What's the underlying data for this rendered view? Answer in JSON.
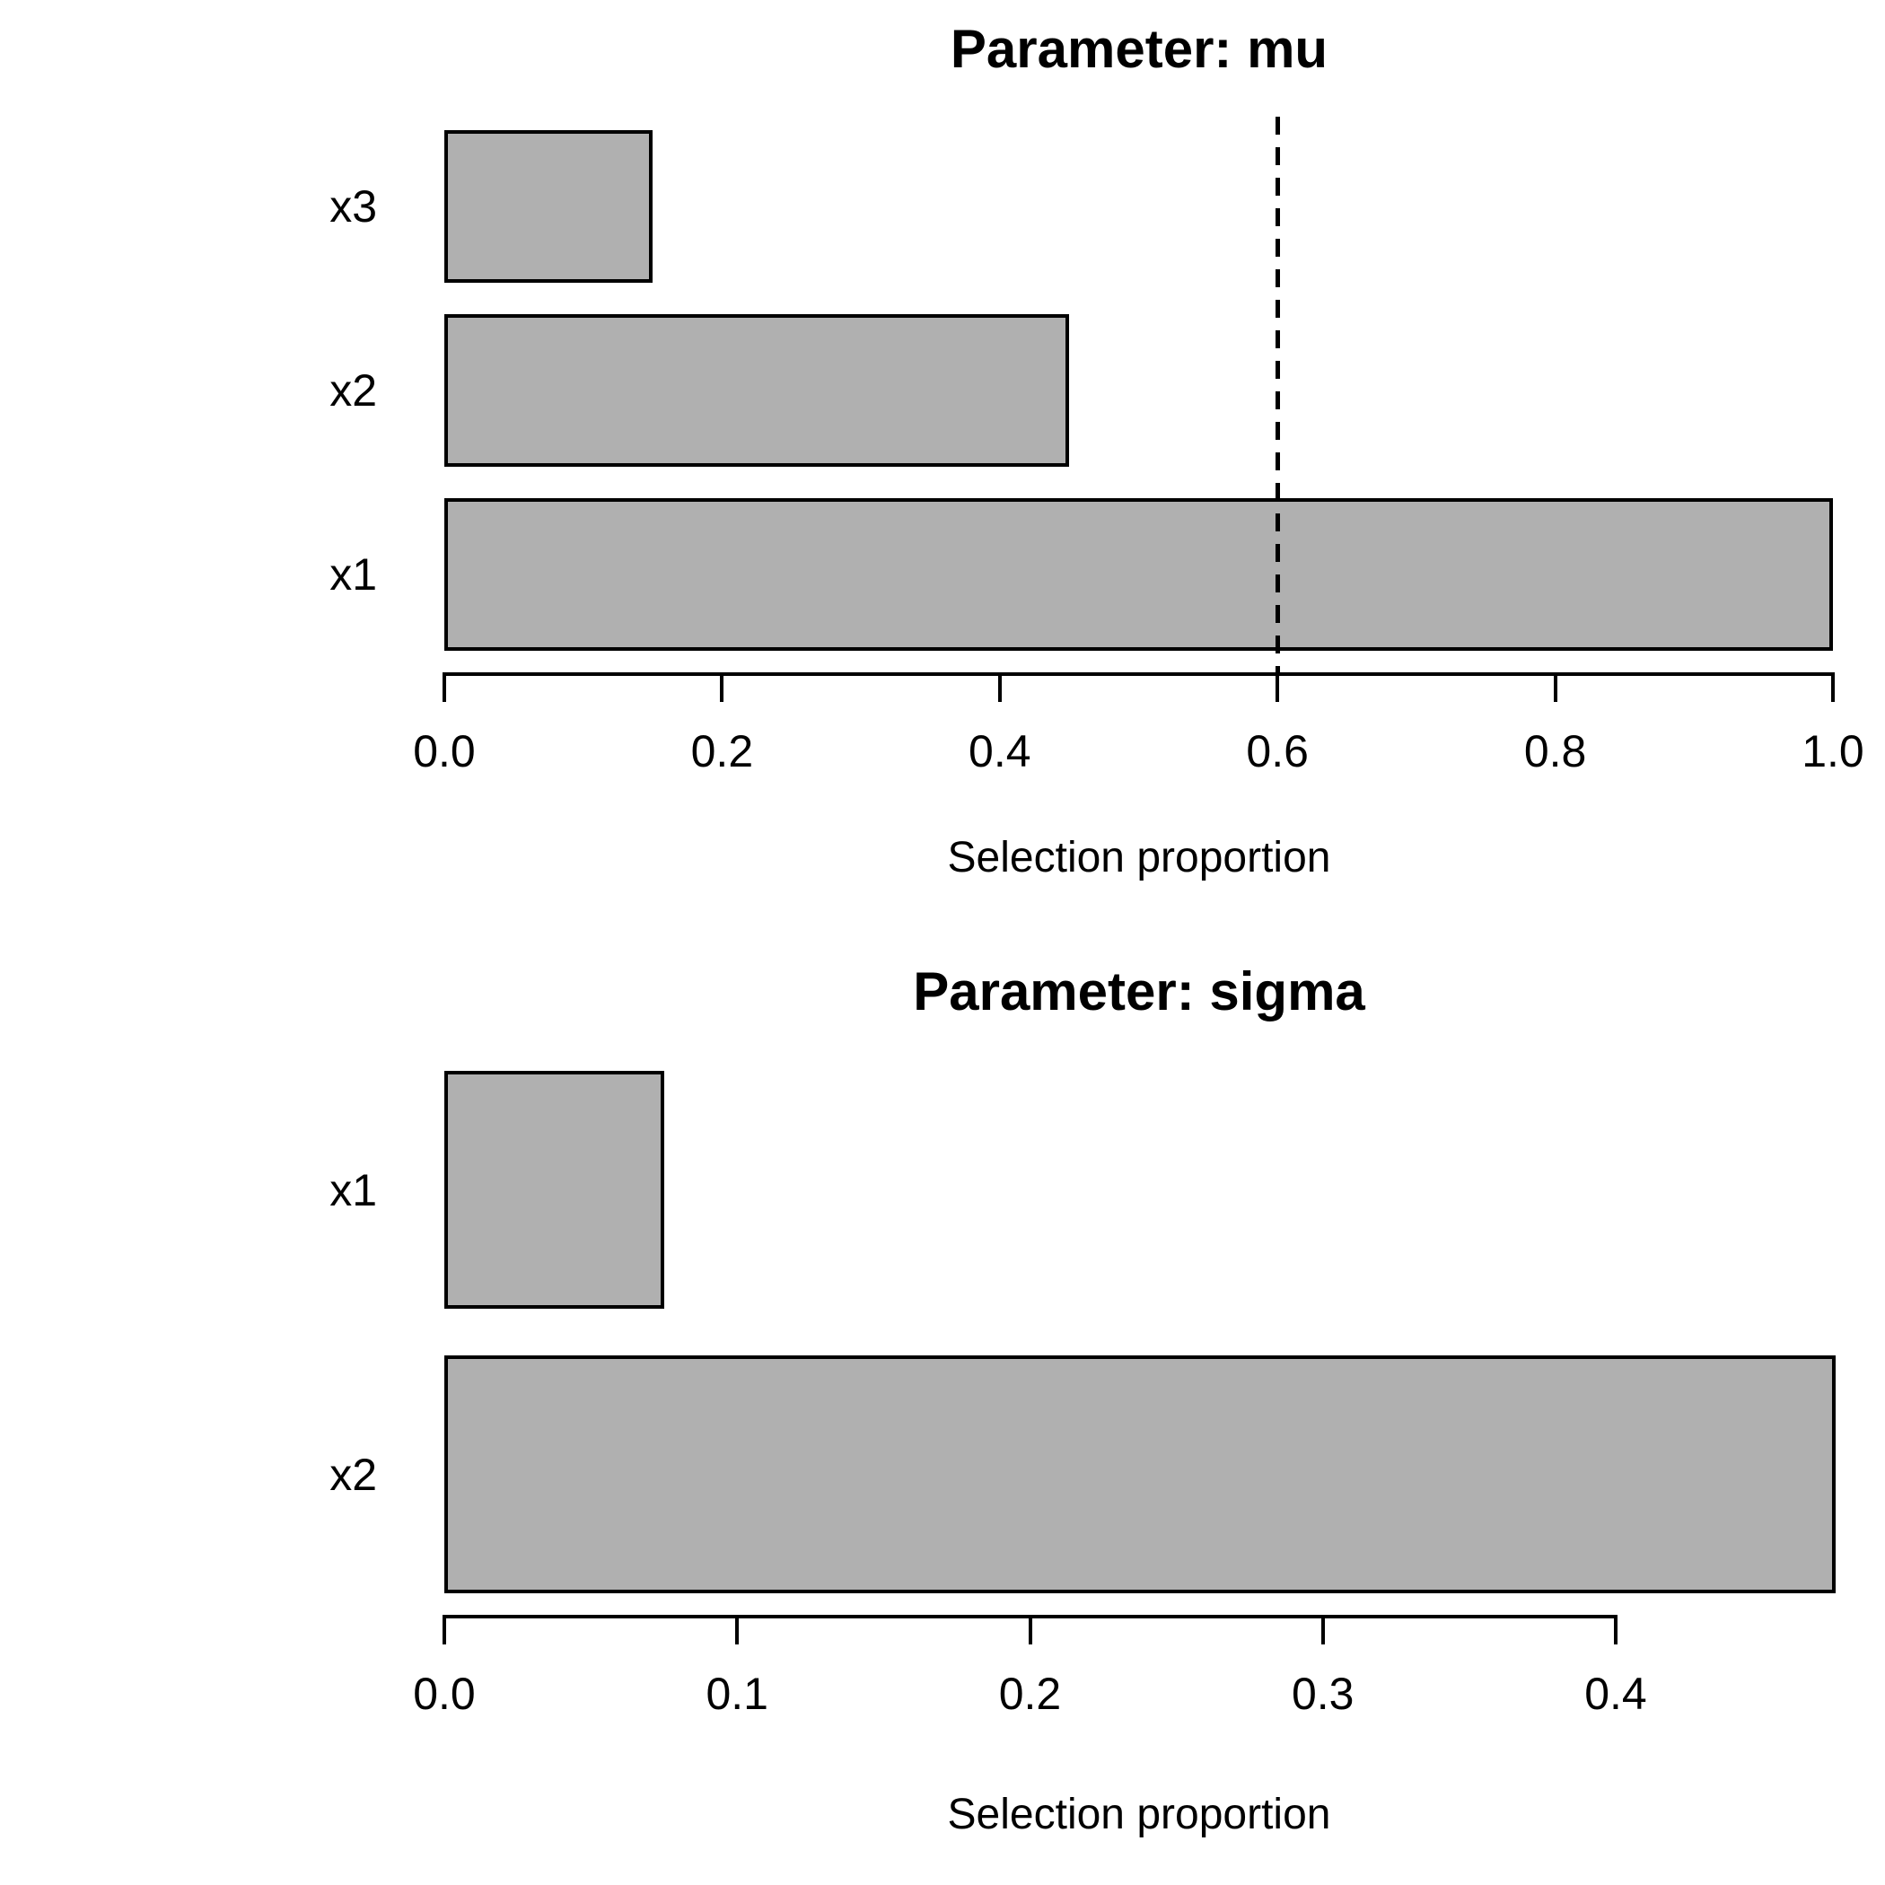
{
  "page": {
    "background": "#ffffff"
  },
  "colors": {
    "background": "#ffffff",
    "bar_fill": "#b0b0b0",
    "bar_border": "#000000",
    "axis": "#000000",
    "text": "#000000"
  },
  "chart_data": [
    {
      "type": "bar",
      "orientation": "horizontal",
      "title": "Parameter: mu",
      "xlabel": "Selection proportion",
      "ylabel": "",
      "categories_top_to_bottom": [
        "x3",
        "x2",
        "x1"
      ],
      "values": [
        0.15,
        0.45,
        1.0
      ],
      "xlim": [
        0.0,
        1.0
      ],
      "xticks": [
        0.0,
        0.2,
        0.4,
        0.6,
        0.8,
        1.0
      ],
      "xtick_labels": [
        "0.0",
        "0.2",
        "0.4",
        "0.6",
        "0.8",
        "1.0"
      ],
      "reference_line": {
        "value": 0.6,
        "orientation": "vertical",
        "style": "dashed"
      },
      "grid": false,
      "legend": false
    },
    {
      "type": "bar",
      "orientation": "horizontal",
      "title": "Parameter: sigma",
      "xlabel": "Selection proportion",
      "ylabel": "",
      "categories_top_to_bottom": [
        "x1",
        "x2"
      ],
      "values": [
        0.075,
        0.475
      ],
      "xlim": [
        0.0,
        0.475
      ],
      "xticks": [
        0.0,
        0.1,
        0.2,
        0.3,
        0.4
      ],
      "xtick_labels": [
        "0.0",
        "0.1",
        "0.2",
        "0.3",
        "0.4"
      ],
      "reference_line": null,
      "grid": false,
      "legend": false
    }
  ]
}
